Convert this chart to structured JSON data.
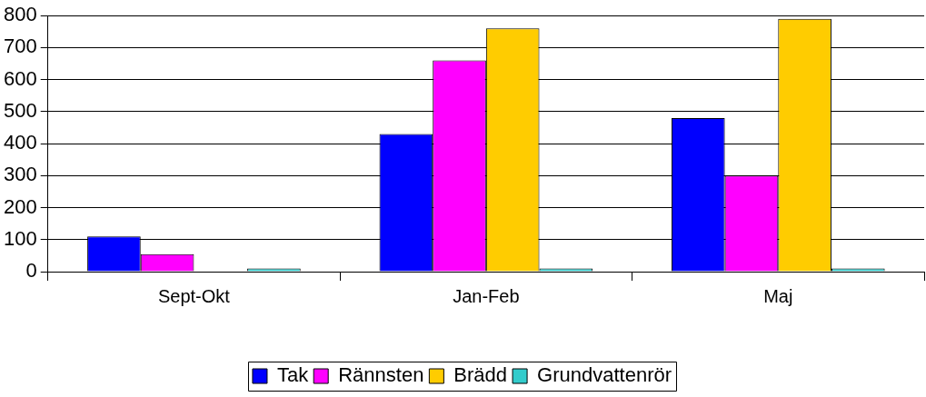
{
  "chart_data": {
    "type": "bar",
    "categories": [
      "Sept-Okt",
      "Jan-Feb",
      "Maj"
    ],
    "series": [
      {
        "name": "Tak",
        "color": "#0000ff",
        "values": [
          110,
          430,
          480
        ]
      },
      {
        "name": "Rännsten",
        "color": "#ff00ff",
        "values": [
          55,
          660,
          300
        ]
      },
      {
        "name": "Brädd",
        "color": "#ffcc00",
        "values": [
          0,
          760,
          790
        ]
      },
      {
        "name": "Grundvattenrör",
        "color": "#33cccc",
        "values": [
          10,
          10,
          10
        ]
      }
    ],
    "ylim": [
      0,
      800
    ],
    "yticks": [
      0,
      100,
      200,
      300,
      400,
      500,
      600,
      700,
      800
    ],
    "grid": "y",
    "legend": "bottom"
  }
}
